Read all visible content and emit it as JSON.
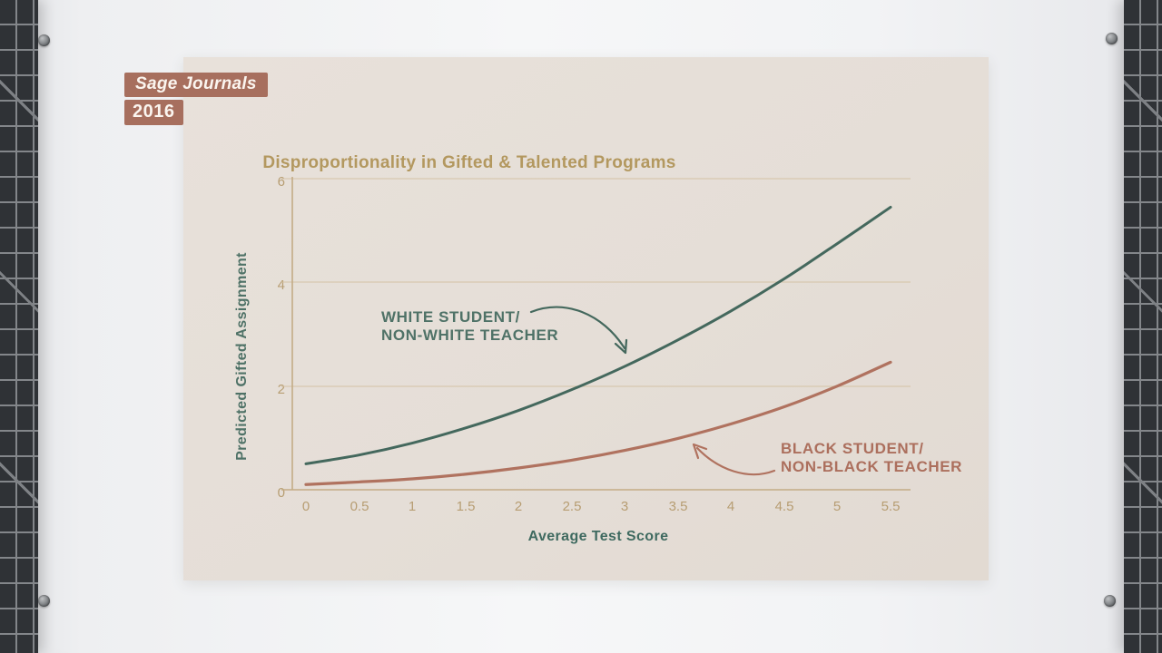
{
  "badge": {
    "source": "Sage Journals",
    "year": "2016"
  },
  "chart_data": {
    "type": "line",
    "title": "Disproportionality in Gifted & Talented Programs",
    "xlabel": "Average Test Score",
    "ylabel": "Predicted Gifted Assignment",
    "xlim": [
      0,
      5.5
    ],
    "ylim": [
      0,
      6
    ],
    "x_ticks": [
      "0",
      "0.5",
      "1",
      "1.5",
      "2",
      "2.5",
      "3",
      "3.5",
      "4",
      "4.5",
      "5",
      "5.5"
    ],
    "y_ticks": [
      "6",
      "4",
      "2",
      "0"
    ],
    "grid": "horizontal gridlines at y = 0, 2, 4, 6",
    "legend_position": "inline annotations with curved arrows pointing at each line",
    "x": [
      0,
      0.5,
      1,
      1.5,
      2,
      2.5,
      3,
      3.5,
      4,
      4.5,
      5,
      5.5
    ],
    "series": [
      {
        "name": "White student / Non-white teacher",
        "label_line1": "WHITE STUDENT/",
        "label_line2": "NON-WHITE TEACHER",
        "color": "#44685d",
        "values": [
          0.5,
          0.67,
          0.9,
          1.19,
          1.53,
          1.93,
          2.38,
          2.89,
          3.45,
          4.07,
          4.75,
          5.45
        ]
      },
      {
        "name": "Black student / Non-black teacher",
        "label_line1": "BLACK STUDENT/",
        "label_line2": "NON-BLACK TEACHER",
        "color": "#b0725f",
        "values": [
          0.1,
          0.15,
          0.21,
          0.3,
          0.42,
          0.57,
          0.76,
          0.99,
          1.27,
          1.6,
          2.0,
          2.46
        ]
      }
    ]
  },
  "colors": {
    "card_bg": "#e5ded7",
    "title_gold": "#b3985f",
    "tick_gold": "#b79d72",
    "axis_tan": "#c3ab85",
    "grid_tan": "#d9c6a8",
    "teal_text": "#4f7267",
    "terracotta_text": "#ac6f5d",
    "badge_bg": "#a76f5e",
    "mat_dark": "#2f3236"
  }
}
